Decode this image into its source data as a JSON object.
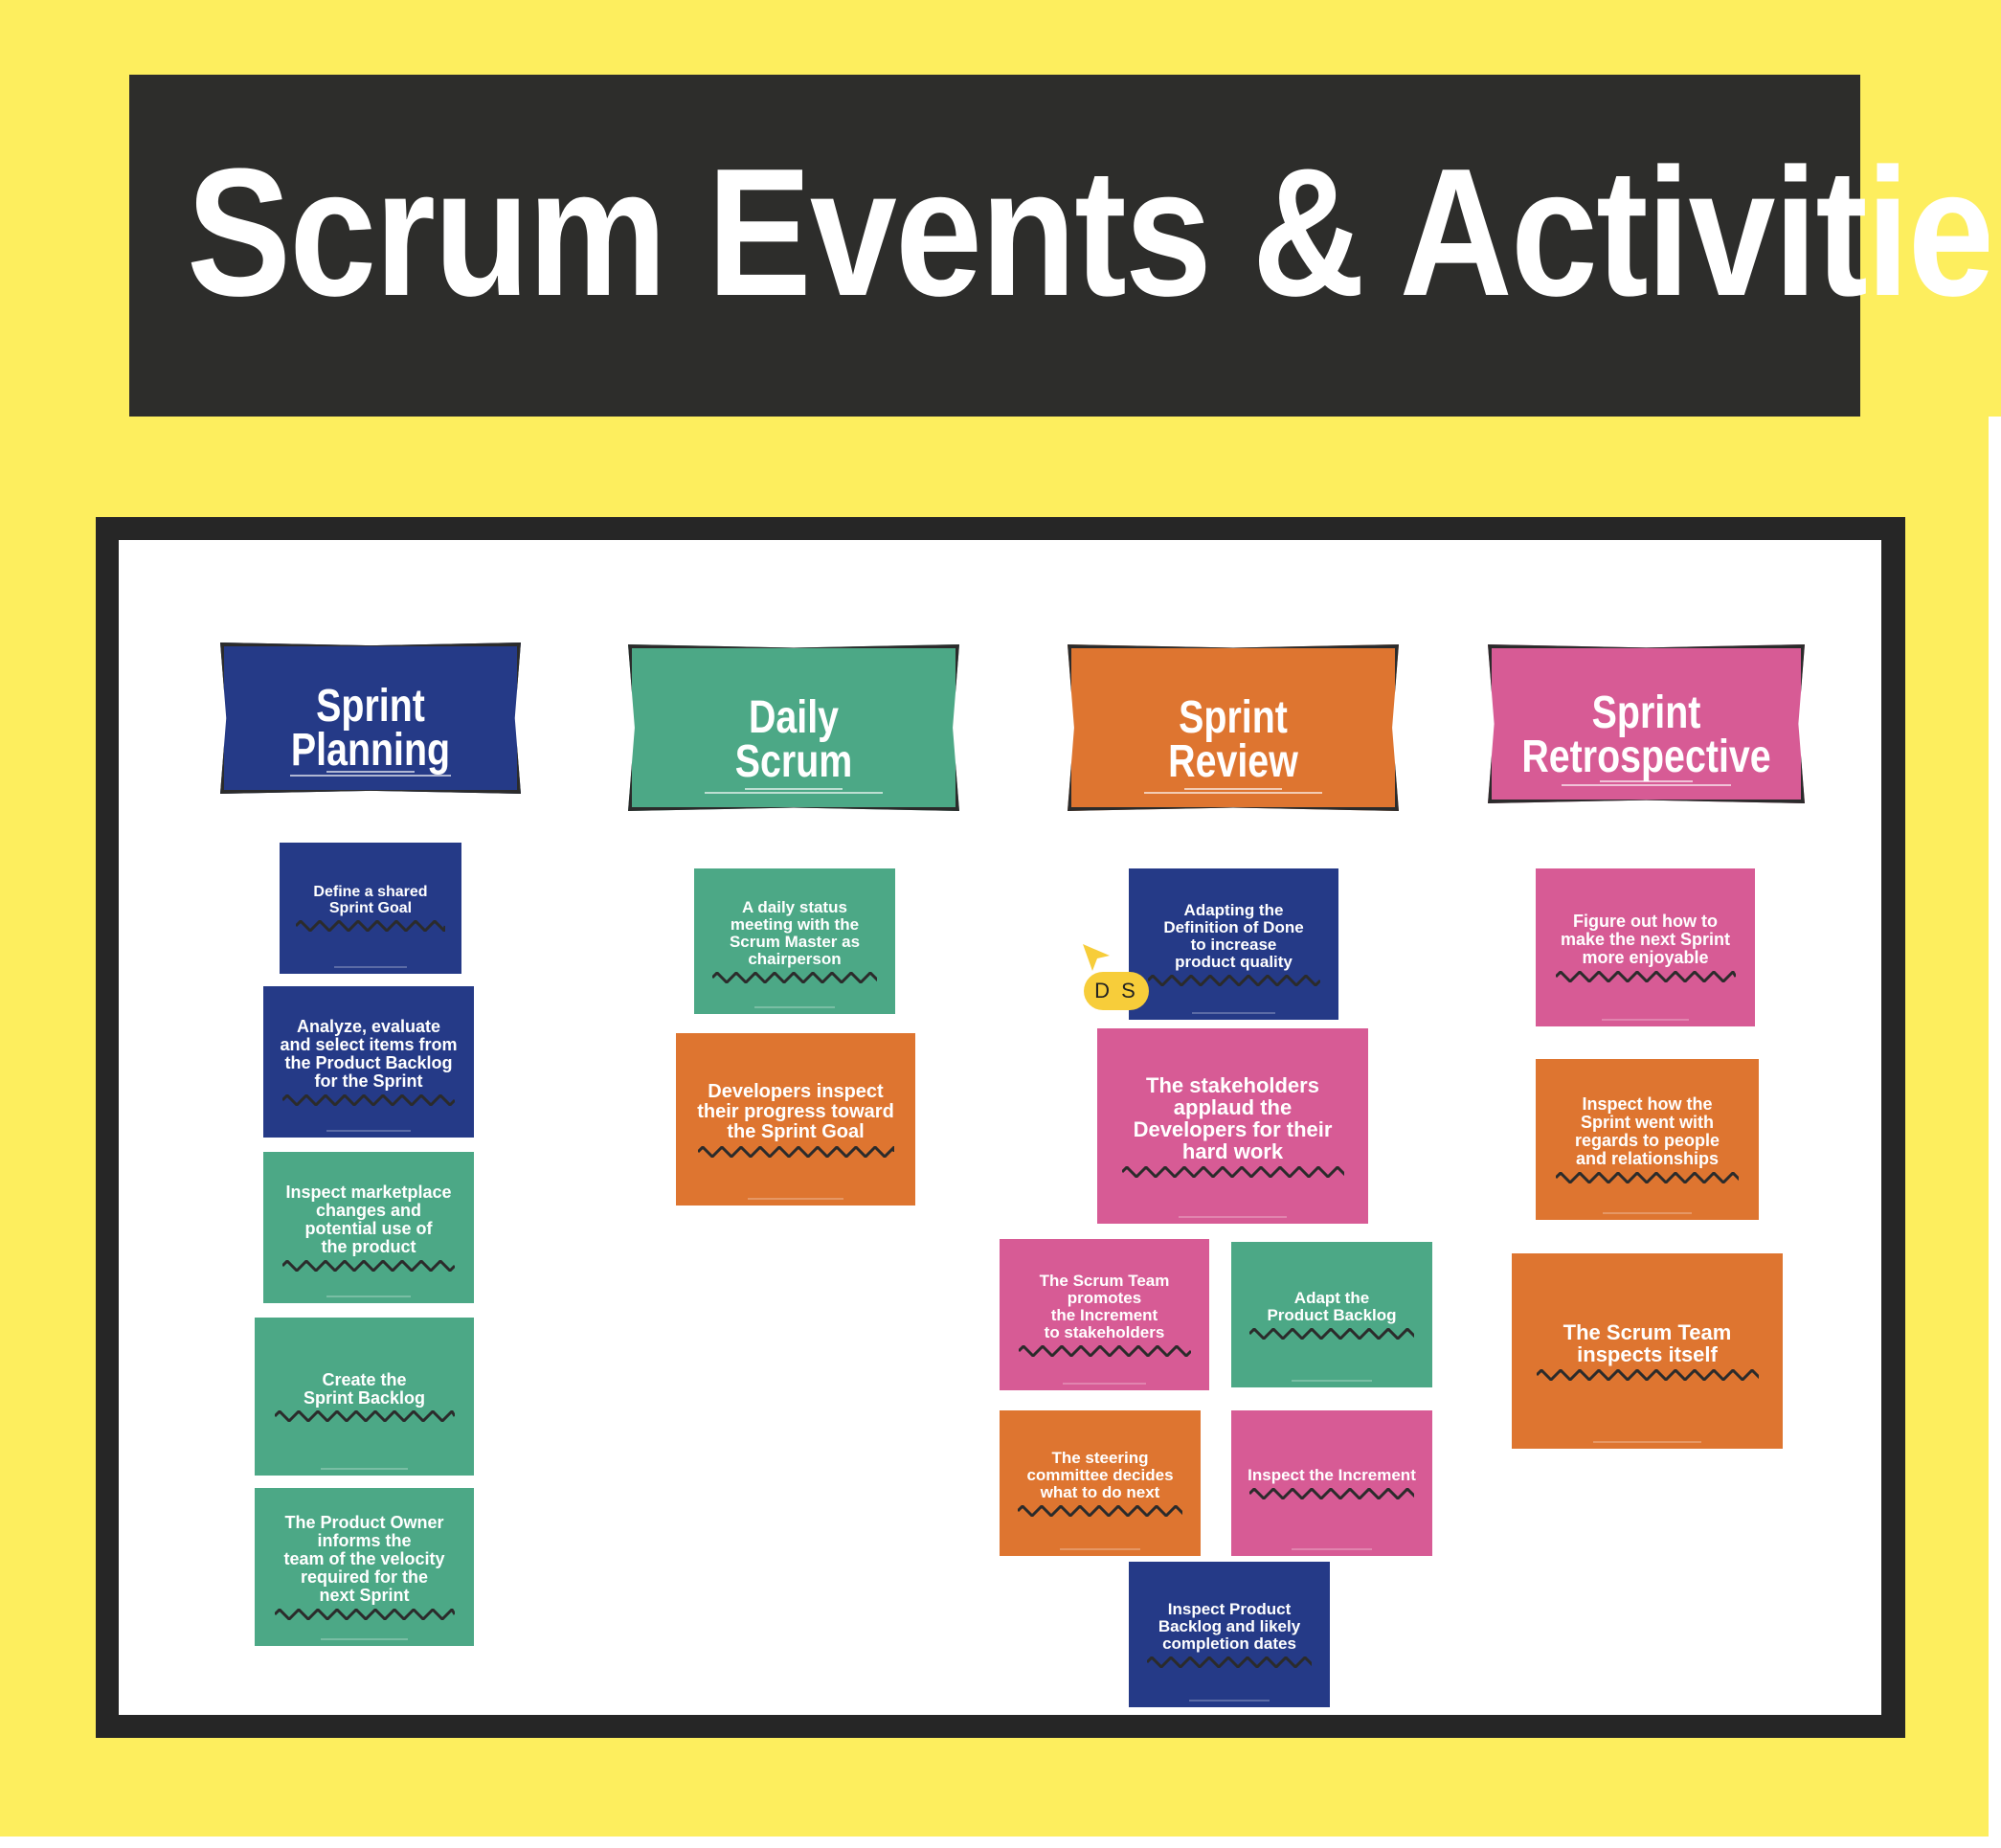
{
  "title": "Scrum Events & Activities",
  "colors": {
    "background": "#fdee5e",
    "banner": "#2d2d2b",
    "frame": "#262626",
    "blue": "#253a87",
    "green": "#4ca886",
    "orange": "#de7530",
    "pink": "#d75b95",
    "cursor": "#f7cd3a"
  },
  "columns": [
    {
      "title": "Sprint\nPlanning",
      "color": "blue",
      "notes": [
        {
          "text": "Define a shared\nSprint Goal",
          "color": "blue"
        },
        {
          "text": "Analyze, evaluate\nand select items from\nthe Product Backlog\nfor the Sprint",
          "color": "blue"
        },
        {
          "text": "Inspect marketplace\nchanges and\npotential use of\nthe product",
          "color": "green"
        },
        {
          "text": "Create the\nSprint Backlog",
          "color": "green"
        },
        {
          "text": "The Product Owner\ninforms the\nteam of the velocity\nrequired for the\nnext Sprint",
          "color": "green"
        }
      ]
    },
    {
      "title": "Daily\nScrum",
      "color": "green",
      "notes": [
        {
          "text": "A daily status\nmeeting with the\nScrum Master as\nchairperson",
          "color": "green"
        },
        {
          "text": "Developers inspect\ntheir progress toward\nthe Sprint Goal",
          "color": "orange"
        }
      ]
    },
    {
      "title": "Sprint\nReview",
      "color": "orange",
      "notes": [
        {
          "text": "Adapting the\nDefinition of Done\nto increase\nproduct quality",
          "color": "blue"
        },
        {
          "text": "The stakeholders\napplaud the\nDevelopers for their\nhard work",
          "color": "pink"
        },
        {
          "text": "The Scrum Team\npromotes\nthe Increment\nto stakeholders",
          "color": "pink"
        },
        {
          "text": "Adapt the\nProduct Backlog",
          "color": "green"
        },
        {
          "text": "The steering\ncommittee decides\nwhat to do next",
          "color": "orange"
        },
        {
          "text": "Inspect the Increment",
          "color": "pink"
        },
        {
          "text": "Inspect Product\nBacklog and likely\ncompletion dates",
          "color": "blue"
        }
      ]
    },
    {
      "title": "Sprint\nRetrospective",
      "color": "pink",
      "notes": [
        {
          "text": "Figure out how to\nmake the next Sprint\nmore enjoyable",
          "color": "pink"
        },
        {
          "text": "Inspect how the\nSprint went with\nregards to people\nand relationships",
          "color": "orange"
        },
        {
          "text": "The Scrum Team\ninspects itself",
          "color": "orange"
        }
      ]
    }
  ],
  "cursor": {
    "initials": "D S"
  }
}
